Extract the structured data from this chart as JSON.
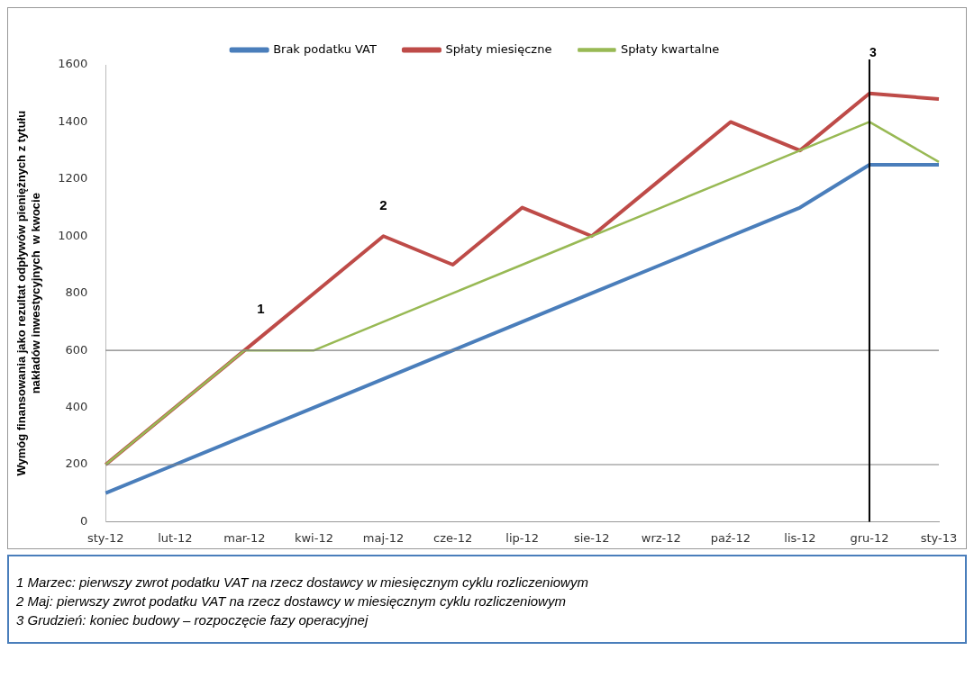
{
  "chart_data": {
    "type": "line",
    "categories": [
      "sty-12",
      "lut-12",
      "mar-12",
      "kwi-12",
      "maj-12",
      "cze-12",
      "lip-12",
      "sie-12",
      "wrz-12",
      "paź-12",
      "lis-12",
      "gru-12",
      "sty-13"
    ],
    "ylabel": "Wymóg finansowania jako rezultat odpływów pieniężnych z tytułu nakładów inwestycyjnych  w kwocie",
    "series": [
      {
        "name": "Brak podatku VAT",
        "color": "#4a7ebb",
        "values": [
          100,
          200,
          300,
          400,
          500,
          600,
          700,
          800,
          900,
          1000,
          1100,
          1250,
          1250
        ]
      },
      {
        "name": "Spłaty miesięczne",
        "color": "#be4b48",
        "values": [
          200,
          400,
          600,
          800,
          1000,
          900,
          1100,
          1000,
          1200,
          1400,
          1300,
          1500,
          1480
        ]
      },
      {
        "name": "Spłaty kwartalne",
        "color": "#98b954",
        "values": [
          200,
          400,
          600,
          600,
          700,
          800,
          900,
          1000,
          1100,
          1200,
          1300,
          1400,
          1260
        ]
      }
    ],
    "ylim": [
      0,
      1600
    ],
    "yticks": [
      0,
      200,
      400,
      600,
      800,
      1000,
      1200,
      1400,
      1600
    ],
    "grid": false,
    "legend": "top",
    "marker": "none",
    "line_style": "solid",
    "ref_lines": [
      {
        "axis": "y",
        "value": 200,
        "color": "#808080"
      },
      {
        "axis": "y",
        "value": 600,
        "color": "#808080"
      },
      {
        "axis": "x",
        "value": "gru-12",
        "label": "3",
        "color": "#000000"
      }
    ],
    "annotations": [
      {
        "text": "1",
        "x": "mar-12",
        "y": 600
      },
      {
        "text": "2",
        "x": "maj-12",
        "y": 1000
      },
      "1 Marzec: pierwszy zwrot podatku VAT na rzecz dostawcy w miesięcznym cyklu rozliczeniowym",
      "2 Maj:  pierwszy zwrot podatku VAT na rzecz dostawcy w miesięcznym cyklu rozliczeniowym",
      "3 Grudzień: koniec budowy – rozpoczęcie fazy operacyjnej"
    ]
  }
}
